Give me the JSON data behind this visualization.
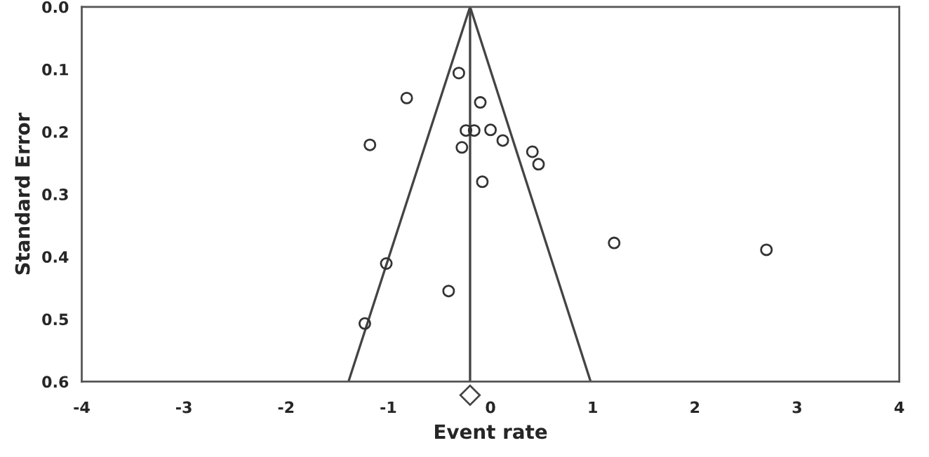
{
  "chart_data": {
    "type": "scatter",
    "xlabel": "Event rate",
    "ylabel": "Standard Error",
    "xlim": [
      -4,
      4
    ],
    "ylim": [
      0.6,
      0.0
    ],
    "xticks": [
      -4,
      -3,
      -2,
      -1,
      0,
      1,
      2,
      3,
      4
    ],
    "yticks": [
      {
        "value": 0.0,
        "label": "0.0"
      },
      {
        "value": 0.1,
        "label": "0.1"
      },
      {
        "value": 0.2,
        "label": "0.2"
      },
      {
        "value": 0.3,
        "label": "0.3"
      },
      {
        "value": 0.4,
        "label": "0.4"
      },
      {
        "value": 0.5,
        "label": "0.5"
      },
      {
        "value": 0.6,
        "label": "0.6"
      }
    ],
    "grid": false,
    "legend": false,
    "series": [
      {
        "color": "#333333",
        "marker": "circle",
        "x": [
          -0.31,
          -0.82,
          -0.1,
          -0.24,
          -0.16,
          0.0,
          -1.18,
          -0.28,
          0.12,
          0.41,
          0.47,
          -0.08,
          1.21,
          2.7,
          -1.02,
          -0.41,
          -1.23
        ],
        "values": [
          0.106,
          0.146,
          0.153,
          0.198,
          0.198,
          0.197,
          0.221,
          0.225,
          0.214,
          0.232,
          0.252,
          0.28,
          0.378,
          0.389,
          0.411,
          0.455,
          0.507
        ]
      },
      {
        "type": "line",
        "color": "#444444",
        "marker": "none",
        "line_style": "solid",
        "x": [
          -0.2,
          -1.39
        ],
        "values": [
          0.0,
          0.6
        ]
      },
      {
        "type": "line",
        "color": "#444444",
        "marker": "none",
        "line_style": "solid",
        "x": [
          -0.2,
          0.98
        ],
        "values": [
          0.0,
          0.6
        ]
      }
    ],
    "ref_lines": [
      {
        "axis": "x",
        "value": -0.2,
        "color": "#444444",
        "line_style": "solid"
      }
    ]
  }
}
